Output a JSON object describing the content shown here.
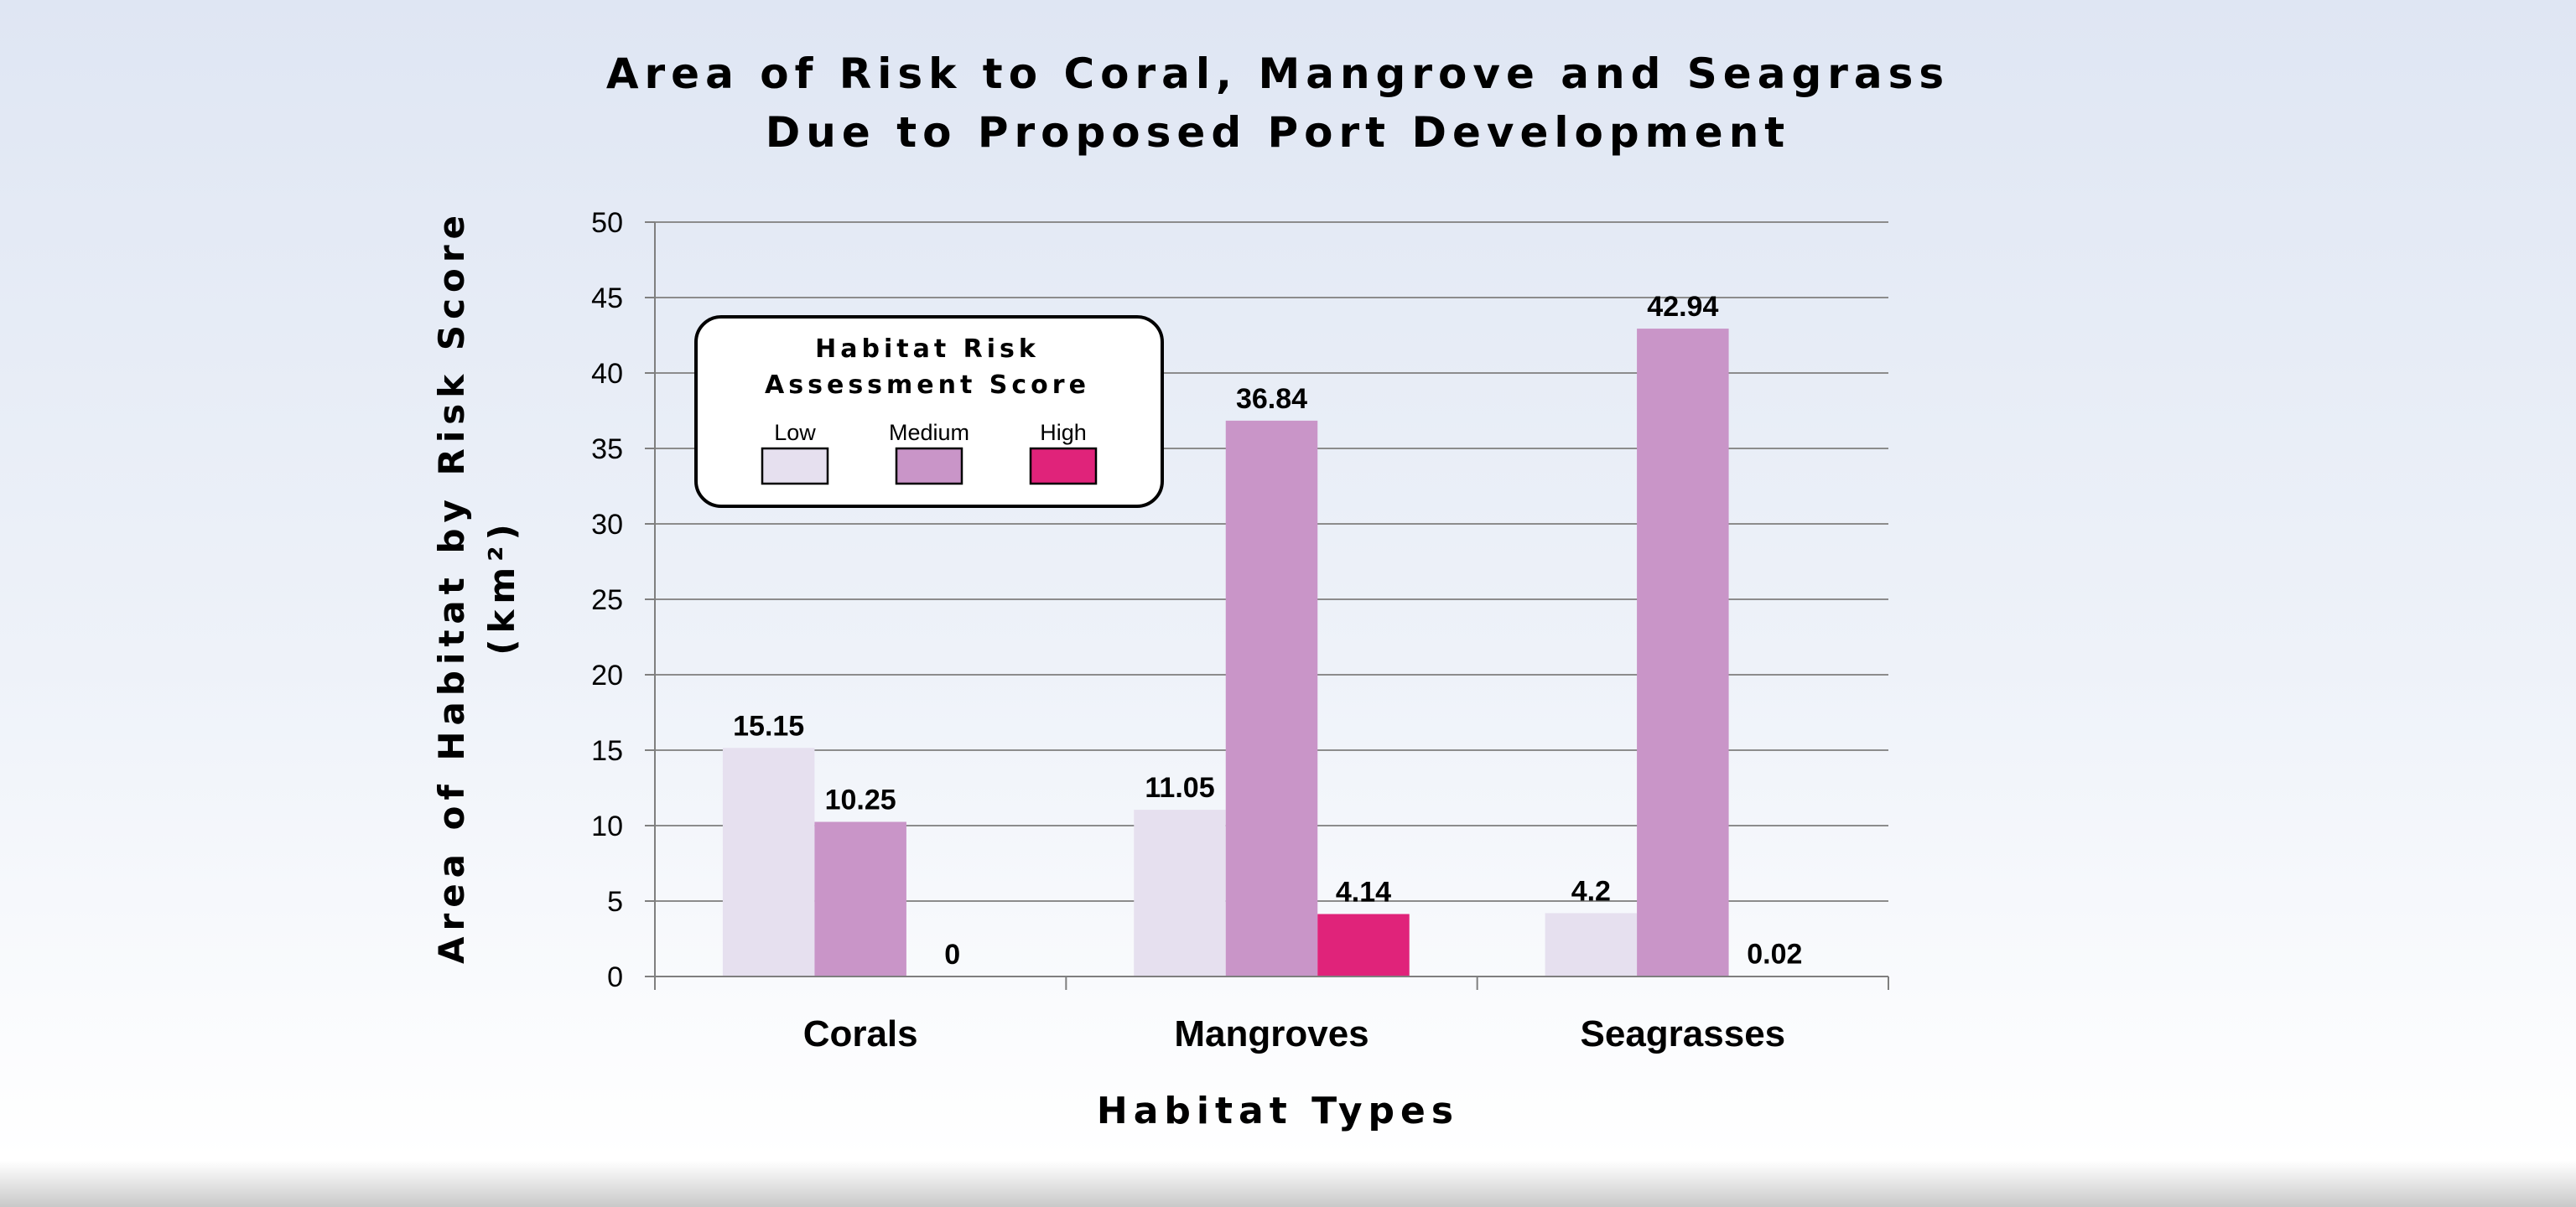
{
  "colors": {
    "low": "#e6e0ef",
    "medium": "#c995c8",
    "high": "#e0237a",
    "gridline": "#8c8c8c",
    "axis": "#7f7f7f"
  },
  "chart_data": {
    "type": "bar",
    "title": "Area of Risk to Coral, Mangrove and Seagrass Due to Proposed Port Development",
    "title_lines": [
      "Area of Risk to Coral, Mangrove and Seagrass",
      "Due to Proposed Port Development"
    ],
    "xlabel": "Habitat Types",
    "ylabel": "Area of Habitat by Risk Score (km²)",
    "ylabel_lines": [
      "Area of Habitat by Risk Score",
      "(km²)"
    ],
    "categories": [
      "Corals",
      "Mangroves",
      "Seagrasses"
    ],
    "series": [
      {
        "name": "Low",
        "values": [
          15.15,
          11.05,
          4.2
        ],
        "labels": [
          "15.15",
          "11.05",
          "4.2"
        ]
      },
      {
        "name": "Medium",
        "values": [
          10.25,
          36.84,
          42.94
        ],
        "labels": [
          "10.25",
          "36.84",
          "42.94"
        ]
      },
      {
        "name": "High",
        "values": [
          0,
          4.14,
          0.02
        ],
        "labels": [
          "0",
          "4.14",
          "0.02"
        ]
      }
    ],
    "ylim": [
      0,
      50
    ],
    "yticks": [
      0,
      5,
      10,
      15,
      20,
      25,
      30,
      35,
      40,
      45,
      50
    ],
    "ytick_labels": [
      "0",
      "5",
      "10",
      "15",
      "20",
      "25",
      "30",
      "35",
      "40",
      "45",
      "50"
    ],
    "grid": true,
    "legend": {
      "title_lines": [
        "Habitat Risk",
        "Assessment Score"
      ],
      "placement": "top-left",
      "items": [
        "Low",
        "Medium",
        "High"
      ]
    }
  }
}
